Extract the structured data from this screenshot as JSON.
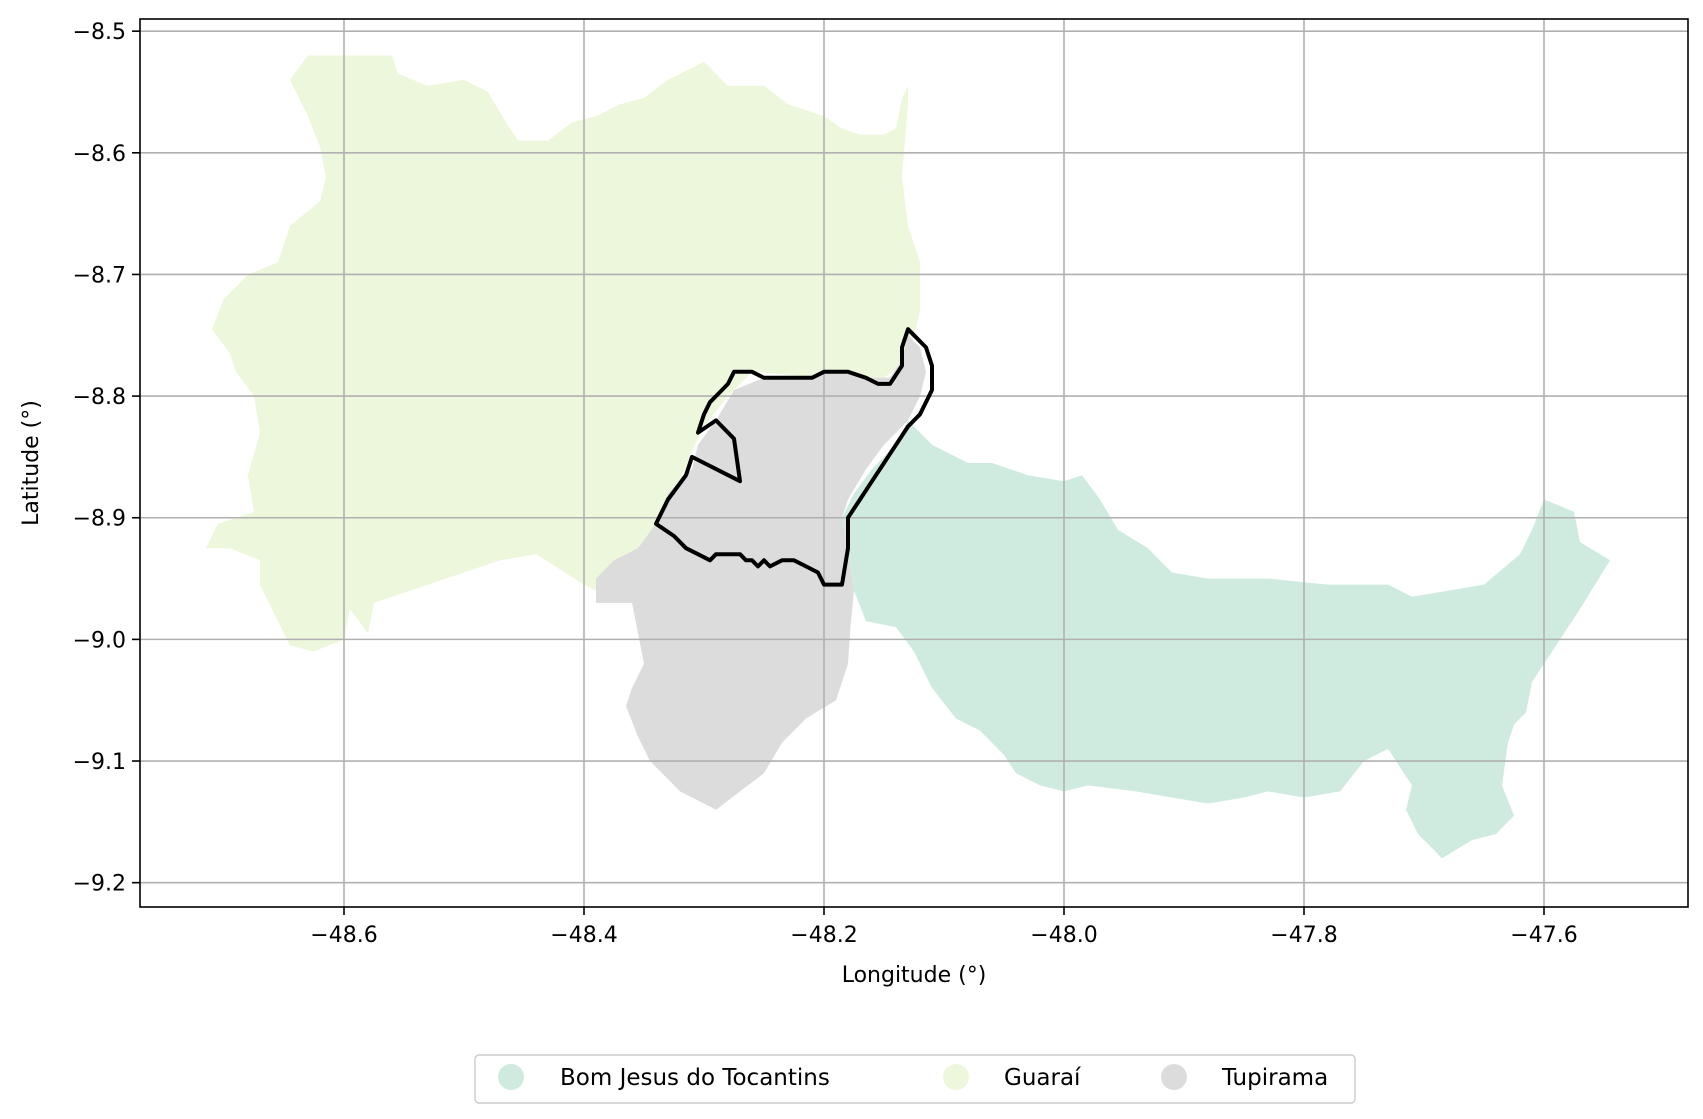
{
  "map": {
    "xlabel": "Longitude (°)",
    "ylabel": "Latitude (°)",
    "xlim": [
      -48.77,
      -47.48
    ],
    "ylim": [
      -9.22,
      -8.49
    ],
    "xticks": [
      -48.6,
      -48.4,
      -48.2,
      -48.0,
      -47.8,
      -47.6
    ],
    "yticks": [
      -8.5,
      -8.6,
      -8.7,
      -8.8,
      -8.9,
      -9.0,
      -9.1,
      -9.2
    ],
    "xtick_labels": [
      "−48.6",
      "−48.4",
      "−48.2",
      "−48.0",
      "−47.8",
      "−47.6"
    ],
    "ytick_labels": [
      "−8.5",
      "−8.6",
      "−8.7",
      "−8.8",
      "−8.9",
      "−9.0",
      "−9.1",
      "−9.2"
    ],
    "grid": true,
    "legend_position": "bottom-center",
    "legend": [
      {
        "label": "Bom Jesus do Tocantins",
        "color": "#cfebdf"
      },
      {
        "label": "Guaraí",
        "color": "#edf7db"
      },
      {
        "label": "Tupirama",
        "color": "#dcdcdc"
      }
    ],
    "regions": [
      {
        "name": "Guaraí",
        "color": "#edf7db",
        "polygon": [
          [
            -48.63,
            -8.52
          ],
          [
            -48.58,
            -8.52
          ],
          [
            -48.56,
            -8.52
          ],
          [
            -48.555,
            -8.535
          ],
          [
            -48.53,
            -8.545
          ],
          [
            -48.5,
            -8.54
          ],
          [
            -48.48,
            -8.55
          ],
          [
            -48.465,
            -8.575
          ],
          [
            -48.455,
            -8.59
          ],
          [
            -48.43,
            -8.59
          ],
          [
            -48.41,
            -8.575
          ],
          [
            -48.39,
            -8.57
          ],
          [
            -48.37,
            -8.56
          ],
          [
            -48.35,
            -8.555
          ],
          [
            -48.33,
            -8.54
          ],
          [
            -48.31,
            -8.53
          ],
          [
            -48.3,
            -8.525
          ],
          [
            -48.28,
            -8.545
          ],
          [
            -48.25,
            -8.545
          ],
          [
            -48.23,
            -8.56
          ],
          [
            -48.2,
            -8.57
          ],
          [
            -48.185,
            -8.58
          ],
          [
            -48.17,
            -8.585
          ],
          [
            -48.15,
            -8.585
          ],
          [
            -48.14,
            -8.58
          ],
          [
            -48.135,
            -8.555
          ],
          [
            -48.13,
            -8.545
          ],
          [
            -48.13,
            -8.56
          ],
          [
            -48.135,
            -8.62
          ],
          [
            -48.13,
            -8.66
          ],
          [
            -48.12,
            -8.69
          ],
          [
            -48.12,
            -8.73
          ],
          [
            -48.125,
            -8.75
          ],
          [
            -48.13,
            -8.77
          ],
          [
            -48.15,
            -8.785
          ],
          [
            -48.2,
            -8.785
          ],
          [
            -48.26,
            -8.78
          ],
          [
            -48.28,
            -8.8
          ],
          [
            -48.3,
            -8.825
          ],
          [
            -48.31,
            -8.845
          ],
          [
            -48.32,
            -8.87
          ],
          [
            -48.33,
            -8.9
          ],
          [
            -48.34,
            -8.93
          ],
          [
            -48.37,
            -8.97
          ],
          [
            -48.4,
            -8.955
          ],
          [
            -48.44,
            -8.93
          ],
          [
            -48.47,
            -8.935
          ],
          [
            -48.53,
            -8.955
          ],
          [
            -48.56,
            -8.965
          ],
          [
            -48.575,
            -8.97
          ],
          [
            -48.58,
            -8.995
          ],
          [
            -48.595,
            -8.975
          ],
          [
            -48.6,
            -9.0
          ],
          [
            -48.625,
            -9.01
          ],
          [
            -48.645,
            -9.005
          ],
          [
            -48.66,
            -8.975
          ],
          [
            -48.67,
            -8.955
          ],
          [
            -48.67,
            -8.935
          ],
          [
            -48.695,
            -8.925
          ],
          [
            -48.715,
            -8.925
          ],
          [
            -48.705,
            -8.905
          ],
          [
            -48.675,
            -8.895
          ],
          [
            -48.68,
            -8.865
          ],
          [
            -48.67,
            -8.83
          ],
          [
            -48.675,
            -8.8
          ],
          [
            -48.69,
            -8.78
          ],
          [
            -48.695,
            -8.765
          ],
          [
            -48.71,
            -8.745
          ],
          [
            -48.7,
            -8.72
          ],
          [
            -48.68,
            -8.7
          ],
          [
            -48.655,
            -8.69
          ],
          [
            -48.645,
            -8.66
          ],
          [
            -48.62,
            -8.64
          ],
          [
            -48.615,
            -8.62
          ],
          [
            -48.62,
            -8.595
          ],
          [
            -48.63,
            -8.57
          ],
          [
            -48.645,
            -8.54
          ]
        ]
      },
      {
        "name": "Bom Jesus do Tocantins",
        "color": "#cfebdf",
        "polygon": [
          [
            -48.13,
            -8.82
          ],
          [
            -48.11,
            -8.84
          ],
          [
            -48.08,
            -8.855
          ],
          [
            -48.06,
            -8.855
          ],
          [
            -48.03,
            -8.865
          ],
          [
            -48.0,
            -8.87
          ],
          [
            -47.985,
            -8.865
          ],
          [
            -47.97,
            -8.885
          ],
          [
            -47.955,
            -8.91
          ],
          [
            -47.93,
            -8.925
          ],
          [
            -47.91,
            -8.945
          ],
          [
            -47.88,
            -8.95
          ],
          [
            -47.83,
            -8.95
          ],
          [
            -47.78,
            -8.955
          ],
          [
            -47.73,
            -8.955
          ],
          [
            -47.71,
            -8.965
          ],
          [
            -47.68,
            -8.96
          ],
          [
            -47.65,
            -8.955
          ],
          [
            -47.62,
            -8.93
          ],
          [
            -47.61,
            -8.91
          ],
          [
            -47.6,
            -8.885
          ],
          [
            -47.575,
            -8.895
          ],
          [
            -47.57,
            -8.92
          ],
          [
            -47.545,
            -8.935
          ],
          [
            -47.57,
            -8.975
          ],
          [
            -47.61,
            -9.035
          ],
          [
            -47.615,
            -9.06
          ],
          [
            -47.625,
            -9.07
          ],
          [
            -47.63,
            -9.085
          ],
          [
            -47.635,
            -9.12
          ],
          [
            -47.625,
            -9.145
          ],
          [
            -47.64,
            -9.16
          ],
          [
            -47.66,
            -9.165
          ],
          [
            -47.685,
            -9.18
          ],
          [
            -47.705,
            -9.16
          ],
          [
            -47.715,
            -9.14
          ],
          [
            -47.71,
            -9.12
          ],
          [
            -47.72,
            -9.105
          ],
          [
            -47.73,
            -9.09
          ],
          [
            -47.75,
            -9.1
          ],
          [
            -47.77,
            -9.125
          ],
          [
            -47.8,
            -9.13
          ],
          [
            -47.83,
            -9.125
          ],
          [
            -47.85,
            -9.13
          ],
          [
            -47.88,
            -9.135
          ],
          [
            -47.91,
            -9.13
          ],
          [
            -47.94,
            -9.125
          ],
          [
            -47.98,
            -9.12
          ],
          [
            -48.0,
            -9.125
          ],
          [
            -48.02,
            -9.12
          ],
          [
            -48.04,
            -9.11
          ],
          [
            -48.05,
            -9.095
          ],
          [
            -48.07,
            -9.075
          ],
          [
            -48.09,
            -9.065
          ],
          [
            -48.11,
            -9.04
          ],
          [
            -48.125,
            -9.01
          ],
          [
            -48.14,
            -8.99
          ],
          [
            -48.165,
            -8.985
          ],
          [
            -48.175,
            -8.96
          ],
          [
            -48.18,
            -8.93
          ],
          [
            -48.185,
            -8.9
          ],
          [
            -48.175,
            -8.88
          ],
          [
            -48.16,
            -8.86
          ],
          [
            -48.14,
            -8.84
          ]
        ]
      },
      {
        "name": "Tupirama",
        "color": "#dcdcdc",
        "polygon": [
          [
            -48.13,
            -8.75
          ],
          [
            -48.12,
            -8.76
          ],
          [
            -48.115,
            -8.78
          ],
          [
            -48.12,
            -8.8
          ],
          [
            -48.13,
            -8.82
          ],
          [
            -48.15,
            -8.84
          ],
          [
            -48.165,
            -8.86
          ],
          [
            -48.18,
            -8.885
          ],
          [
            -48.185,
            -8.9
          ],
          [
            -48.18,
            -8.93
          ],
          [
            -48.175,
            -8.96
          ],
          [
            -48.178,
            -8.99
          ],
          [
            -48.18,
            -9.02
          ],
          [
            -48.19,
            -9.05
          ],
          [
            -48.215,
            -9.065
          ],
          [
            -48.235,
            -9.085
          ],
          [
            -48.25,
            -9.11
          ],
          [
            -48.27,
            -9.125
          ],
          [
            -48.29,
            -9.14
          ],
          [
            -48.32,
            -9.125
          ],
          [
            -48.345,
            -9.1
          ],
          [
            -48.355,
            -9.08
          ],
          [
            -48.365,
            -9.055
          ],
          [
            -48.36,
            -9.04
          ],
          [
            -48.35,
            -9.02
          ],
          [
            -48.355,
            -8.995
          ],
          [
            -48.36,
            -8.97
          ],
          [
            -48.39,
            -8.97
          ],
          [
            -48.39,
            -8.95
          ],
          [
            -48.375,
            -8.935
          ],
          [
            -48.355,
            -8.925
          ],
          [
            -48.34,
            -8.905
          ],
          [
            -48.33,
            -8.88
          ],
          [
            -48.31,
            -8.86
          ],
          [
            -48.305,
            -8.84
          ],
          [
            -48.29,
            -8.82
          ],
          [
            -48.275,
            -8.795
          ],
          [
            -48.25,
            -8.785
          ],
          [
            -48.22,
            -8.785
          ],
          [
            -48.19,
            -8.78
          ],
          [
            -48.165,
            -8.785
          ],
          [
            -48.145,
            -8.785
          ],
          [
            -48.135,
            -8.77
          ]
        ]
      }
    ],
    "outline": [
      [
        -48.13,
        -8.745
      ],
      [
        -48.115,
        -8.76
      ],
      [
        -48.11,
        -8.775
      ],
      [
        -48.11,
        -8.795
      ],
      [
        -48.12,
        -8.815
      ],
      [
        -48.13,
        -8.825
      ],
      [
        -48.14,
        -8.84
      ],
      [
        -48.15,
        -8.855
      ],
      [
        -48.16,
        -8.87
      ],
      [
        -48.17,
        -8.885
      ],
      [
        -48.18,
        -8.9
      ],
      [
        -48.18,
        -8.925
      ],
      [
        -48.185,
        -8.955
      ],
      [
        -48.2,
        -8.955
      ],
      [
        -48.205,
        -8.945
      ],
      [
        -48.215,
        -8.94
      ],
      [
        -48.225,
        -8.935
      ],
      [
        -48.235,
        -8.935
      ],
      [
        -48.245,
        -8.94
      ],
      [
        -48.25,
        -8.935
      ],
      [
        -48.255,
        -8.94
      ],
      [
        -48.26,
        -8.935
      ],
      [
        -48.265,
        -8.935
      ],
      [
        -48.27,
        -8.93
      ],
      [
        -48.28,
        -8.93
      ],
      [
        -48.29,
        -8.93
      ],
      [
        -48.295,
        -8.935
      ],
      [
        -48.305,
        -8.93
      ],
      [
        -48.315,
        -8.925
      ],
      [
        -48.325,
        -8.915
      ],
      [
        -48.34,
        -8.905
      ],
      [
        -48.33,
        -8.885
      ],
      [
        -48.315,
        -8.865
      ],
      [
        -48.31,
        -8.85
      ],
      [
        -48.27,
        -8.87
      ],
      [
        -48.275,
        -8.835
      ],
      [
        -48.29,
        -8.82
      ],
      [
        -48.305,
        -8.83
      ],
      [
        -48.3,
        -8.815
      ],
      [
        -48.295,
        -8.805
      ],
      [
        -48.29,
        -8.8
      ],
      [
        -48.285,
        -8.795
      ],
      [
        -48.28,
        -8.79
      ],
      [
        -48.275,
        -8.78
      ],
      [
        -48.26,
        -8.78
      ],
      [
        -48.25,
        -8.785
      ],
      [
        -48.24,
        -8.785
      ],
      [
        -48.22,
        -8.785
      ],
      [
        -48.21,
        -8.785
      ],
      [
        -48.2,
        -8.78
      ],
      [
        -48.19,
        -8.78
      ],
      [
        -48.18,
        -8.78
      ],
      [
        -48.165,
        -8.785
      ],
      [
        -48.155,
        -8.79
      ],
      [
        -48.145,
        -8.79
      ],
      [
        -48.135,
        -8.775
      ],
      [
        -48.135,
        -8.76
      ]
    ]
  }
}
